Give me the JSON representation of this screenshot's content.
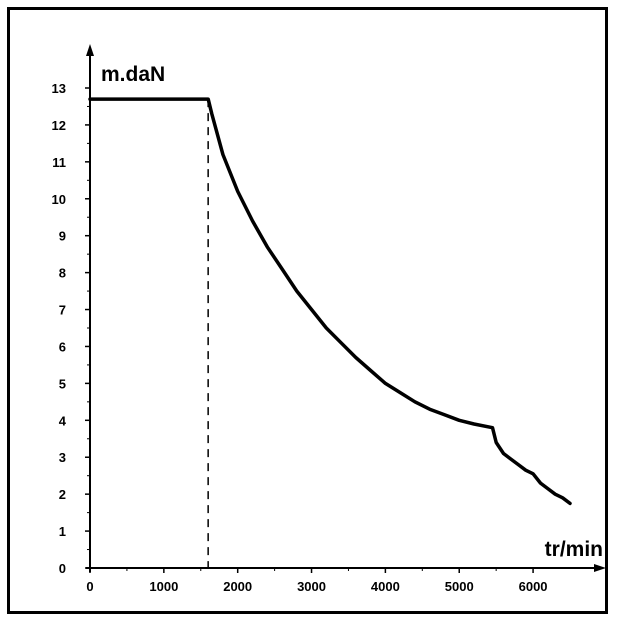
{
  "chart_data": {
    "type": "line",
    "title": "",
    "xlabel": "tr/min",
    "ylabel": "m.daN",
    "xlim": [
      0,
      6500
    ],
    "ylim": [
      0,
      13
    ],
    "x_ticks": [
      0,
      1000,
      2000,
      3000,
      4000,
      5000,
      6000
    ],
    "y_ticks": [
      0,
      1,
      2,
      3,
      4,
      5,
      6,
      7,
      8,
      9,
      10,
      11,
      12,
      13
    ],
    "grid": false,
    "legend": "none",
    "series": [
      {
        "name": "",
        "color": "#000000",
        "x": [
          0,
          1600,
          1650,
          1800,
          2000,
          2200,
          2400,
          2600,
          2800,
          3000,
          3200,
          3400,
          3600,
          3800,
          4000,
          4200,
          4400,
          4600,
          4800,
          5000,
          5200,
          5450,
          5500,
          5600,
          5700,
          5800,
          5900,
          6000,
          6100,
          6200,
          6300,
          6400,
          6500
        ],
        "y": [
          12.7,
          12.7,
          12.3,
          11.2,
          10.2,
          9.4,
          8.7,
          8.1,
          7.5,
          7.0,
          6.5,
          6.1,
          5.7,
          5.35,
          5.0,
          4.75,
          4.5,
          4.3,
          4.15,
          4.0,
          3.9,
          3.8,
          3.4,
          3.1,
          2.95,
          2.8,
          2.65,
          2.55,
          2.3,
          2.15,
          2.0,
          1.9,
          1.75
        ]
      }
    ],
    "annotations": [
      {
        "type": "vertical-dashed-line",
        "x": 1600,
        "y_from": 0,
        "y_to": 12.7
      }
    ]
  }
}
